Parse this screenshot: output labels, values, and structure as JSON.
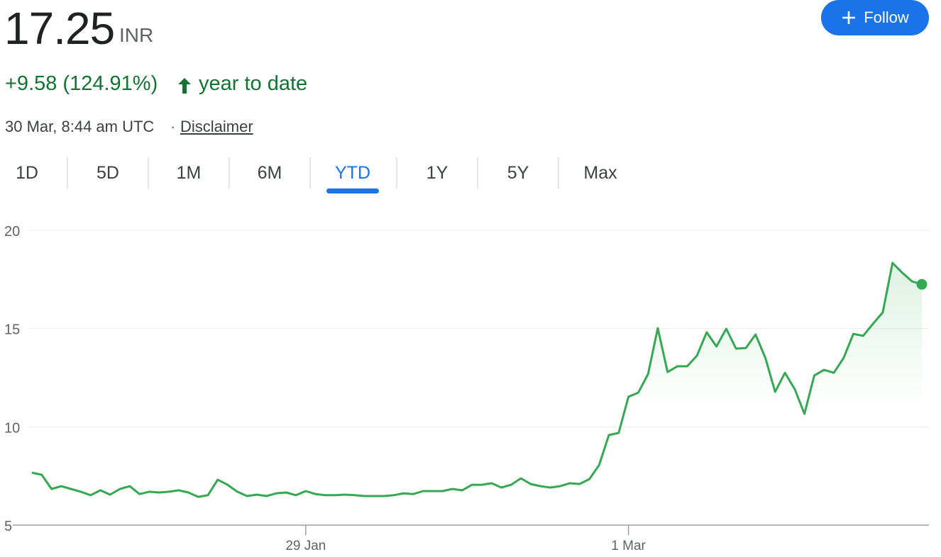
{
  "header": {
    "price": "17.25",
    "currency": "INR",
    "change": "+9.58 (124.91%)",
    "period": "year to date",
    "timestamp": "30 Mar, 8:44 am UTC",
    "separator": "·",
    "disclaimer": "Disclaimer",
    "follow": "Follow"
  },
  "tabs": [
    "1D",
    "5D",
    "1M",
    "6M",
    "YTD",
    "1Y",
    "5Y",
    "Max"
  ],
  "active_tab": 4,
  "chart_data": {
    "type": "line",
    "color": "#34a853",
    "categories": [
      null,
      null,
      null,
      null,
      null,
      null,
      null,
      null,
      null,
      null,
      null,
      null,
      null,
      null,
      null,
      null,
      null,
      null,
      null,
      null,
      null,
      null,
      null,
      null,
      null,
      null,
      null,
      null,
      "29 Jan",
      null,
      null,
      null,
      null,
      null,
      null,
      null,
      null,
      null,
      null,
      null,
      null,
      null,
      null,
      null,
      null,
      null,
      null,
      null,
      null,
      null,
      null,
      null,
      null,
      null,
      null,
      null,
      null,
      null,
      null,
      null,
      null,
      "1 Mar",
      null,
      null,
      null,
      null,
      null,
      null,
      null,
      null,
      null,
      null,
      null,
      null,
      null,
      null,
      null,
      null,
      null,
      null,
      null,
      null,
      null,
      null,
      null,
      null,
      null,
      null,
      null,
      null,
      null,
      null
    ],
    "values": [
      7.67,
      7.56,
      6.84,
      6.98,
      6.84,
      6.7,
      6.52,
      6.77,
      6.55,
      6.84,
      6.98,
      6.58,
      6.7,
      6.66,
      6.7,
      6.77,
      6.66,
      6.44,
      6.52,
      7.31,
      7.05,
      6.7,
      6.48,
      6.55,
      6.48,
      6.62,
      6.66,
      6.52,
      6.73,
      6.58,
      6.52,
      6.52,
      6.55,
      6.52,
      6.48,
      6.48,
      6.48,
      6.52,
      6.62,
      6.58,
      6.73,
      6.73,
      6.73,
      6.84,
      6.77,
      7.05,
      7.05,
      7.13,
      6.91,
      7.05,
      7.38,
      7.09,
      6.98,
      6.91,
      6.98,
      7.13,
      7.09,
      7.34,
      8.06,
      9.58,
      9.69,
      11.53,
      11.74,
      12.68,
      15.02,
      12.79,
      13.08,
      13.08,
      13.62,
      14.81,
      14.09,
      14.99,
      13.98,
      14.01,
      14.7,
      13.51,
      11.78,
      12.75,
      11.92,
      10.66,
      12.61,
      12.9,
      12.75,
      13.51,
      14.73,
      14.63,
      15.24,
      15.82,
      18.34,
      17.84,
      17.4,
      17.25
    ],
    "ylim": [
      5,
      20
    ],
    "yticks": [
      5,
      10,
      15,
      20
    ],
    "grid": true
  }
}
